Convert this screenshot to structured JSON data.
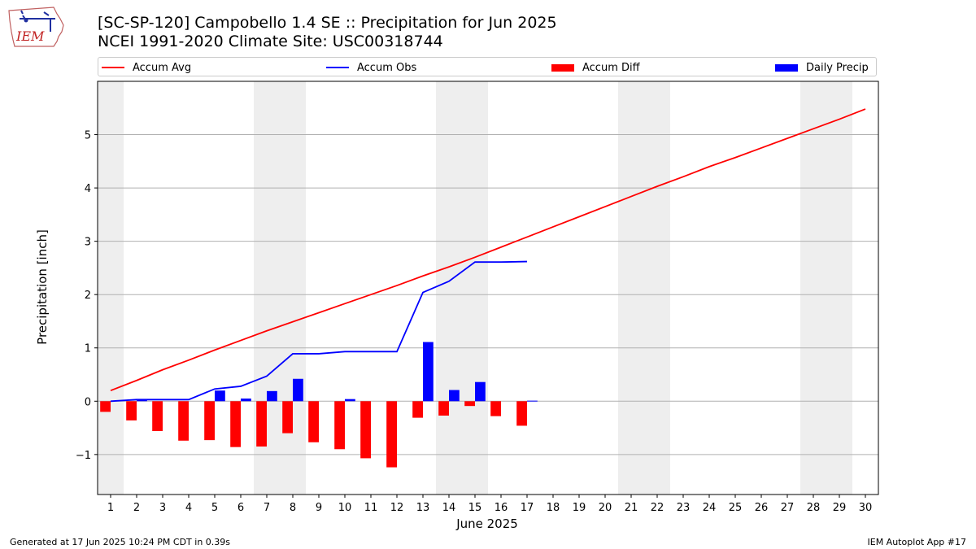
{
  "header": {
    "logo_text": "IEM",
    "title_line1": "[SC-SP-120] Campobello 1.4 SE :: Precipitation for Jun 2025",
    "title_line2": "NCEI 1991-2020 Climate Site: USC00318744"
  },
  "footer": {
    "left": "Generated at 17 Jun 2025 10:24 PM CDT in 0.39s",
    "right": "IEM Autoplot App #17"
  },
  "colors": {
    "accum_avg": "#ff0000",
    "accum_obs": "#0000ff",
    "accum_diff": "#ff0000",
    "daily_precip": "#0000ff",
    "weekend_shade": "#eeeeee",
    "grid": "#b0b0b0"
  },
  "chart_data": {
    "type": "bar",
    "xlabel": "June 2025",
    "ylabel": "Precipitation [inch]",
    "xlim": [
      0.5,
      30.5
    ],
    "ylim": [
      -1.75,
      6.0
    ],
    "x_ticks": [
      1,
      2,
      3,
      4,
      5,
      6,
      7,
      8,
      9,
      10,
      11,
      12,
      13,
      14,
      15,
      16,
      17,
      18,
      19,
      20,
      21,
      22,
      23,
      24,
      25,
      26,
      27,
      28,
      29,
      30
    ],
    "y_ticks": [
      -1,
      0,
      1,
      2,
      3,
      4,
      5
    ],
    "grid": "horizontal",
    "legend_position": "top",
    "shaded_day_ranges": [
      [
        0.5,
        1.5
      ],
      [
        6.5,
        8.5
      ],
      [
        13.5,
        15.5
      ],
      [
        20.5,
        22.5
      ],
      [
        27.5,
        29.5
      ]
    ],
    "legend": [
      "Accum Avg",
      "Accum Obs",
      "Accum Diff",
      "Daily Precip"
    ],
    "days": [
      1,
      2,
      3,
      4,
      5,
      6,
      7,
      8,
      9,
      10,
      11,
      12,
      13,
      14,
      15,
      16,
      17,
      18,
      19,
      20,
      21,
      22,
      23,
      24,
      25,
      26,
      27,
      28,
      29,
      30
    ],
    "series": [
      {
        "name": "Accum Avg",
        "kind": "line",
        "x": [
          1,
          2,
          3,
          4,
          5,
          6,
          7,
          8,
          9,
          10,
          11,
          12,
          13,
          14,
          15,
          16,
          17,
          18,
          19,
          20,
          21,
          22,
          23,
          24,
          25,
          26,
          27,
          28,
          29,
          30
        ],
        "values": [
          0.2,
          0.39,
          0.59,
          0.77,
          0.96,
          1.14,
          1.32,
          1.49,
          1.66,
          1.83,
          2.0,
          2.17,
          2.35,
          2.52,
          2.7,
          2.89,
          3.08,
          3.27,
          3.46,
          3.65,
          3.84,
          4.03,
          4.21,
          4.4,
          4.57,
          4.75,
          4.93,
          5.11,
          5.29,
          5.48
        ]
      },
      {
        "name": "Accum Obs",
        "kind": "line",
        "x": [
          1,
          2,
          3,
          4,
          5,
          6,
          7,
          8,
          9,
          10,
          11,
          12,
          13,
          14,
          15,
          16,
          17
        ],
        "values": [
          0.0,
          0.03,
          0.03,
          0.03,
          0.23,
          0.28,
          0.47,
          0.89,
          0.89,
          0.93,
          0.93,
          0.93,
          2.04,
          2.25,
          2.61,
          2.61,
          2.62
        ]
      },
      {
        "name": "Accum Diff",
        "kind": "bar",
        "x": [
          1,
          2,
          3,
          4,
          5,
          6,
          7,
          8,
          9,
          10,
          11,
          12,
          13,
          14,
          15,
          16,
          17
        ],
        "values": [
          -0.2,
          -0.36,
          -0.56,
          -0.74,
          -0.73,
          -0.86,
          -0.85,
          -0.6,
          -0.77,
          -0.9,
          -1.07,
          -1.24,
          -0.31,
          -0.27,
          -0.09,
          -0.28,
          -0.46
        ]
      },
      {
        "name": "Daily Precip",
        "kind": "bar",
        "x": [
          1,
          2,
          3,
          4,
          5,
          6,
          7,
          8,
          9,
          10,
          11,
          12,
          13,
          14,
          15,
          16,
          17
        ],
        "values": [
          0.0,
          0.03,
          0.0,
          0.0,
          0.2,
          0.05,
          0.19,
          0.42,
          0.0,
          0.04,
          0.0,
          0.0,
          1.11,
          0.21,
          0.36,
          0.0,
          0.01
        ]
      }
    ]
  }
}
